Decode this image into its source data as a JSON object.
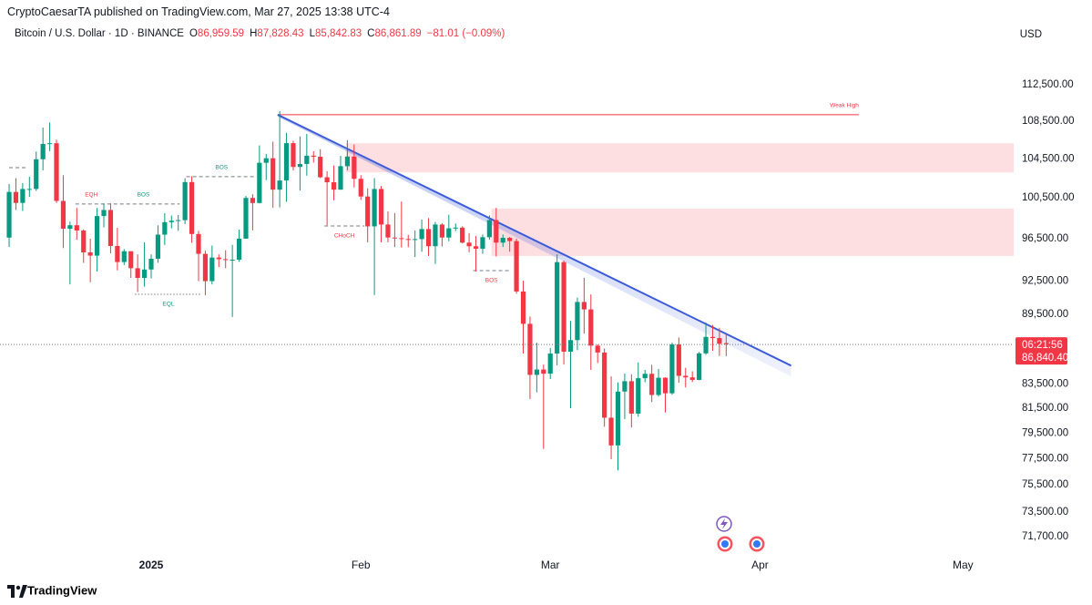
{
  "chart_data": {
    "type": "candlestick",
    "publisher": "CryptoCaesarTA published on TradingView.com, Mar 27, 2025 13:38 UTC-4",
    "title": "Bitcoin / U.S. Dollar · 1D · BINANCE",
    "header_values": [
      {
        "key": "O",
        "value": "86,959.59"
      },
      {
        "key": "H",
        "value": "87,828.43"
      },
      {
        "key": "L",
        "value": "85,842.83"
      },
      {
        "key": "C",
        "value": "86,861.89"
      }
    ],
    "change": "−81.01 (−0.09%)",
    "currency": "USD",
    "brand": "TradingView",
    "up_color": "#089981",
    "down_color": "#f23645",
    "log_scale": true,
    "grid": false,
    "ylim": [
      70670,
      116980
    ],
    "xlim": [
      -1.35,
      148.5
    ],
    "yticks": [
      {
        "value": 112500,
        "label": "112,500.00"
      },
      {
        "value": 108500,
        "label": "108,500.00"
      },
      {
        "value": 104500,
        "label": "104,500.00"
      },
      {
        "value": 100500,
        "label": "100,500.00"
      },
      {
        "value": 96500,
        "label": "96,500.00"
      },
      {
        "value": 92500,
        "label": "92,500.00"
      },
      {
        "value": 89500,
        "label": "89,500.00"
      },
      {
        "value": 83500,
        "label": "83,500.00"
      },
      {
        "value": 81500,
        "label": "81,500.00"
      },
      {
        "value": 79500,
        "label": "79,500.00"
      },
      {
        "value": 77500,
        "label": "77,500.00"
      },
      {
        "value": 75500,
        "label": "75,500.00"
      },
      {
        "value": 73500,
        "label": "73,500.00"
      },
      {
        "value": 71700,
        "label": "71,700.00"
      }
    ],
    "xticks": [
      {
        "value": 21,
        "label": "2025"
      },
      {
        "value": 52,
        "label": "Feb"
      },
      {
        "value": 80,
        "label": "Mar"
      },
      {
        "value": 111,
        "label": "Apr"
      },
      {
        "value": 141,
        "label": "May"
      }
    ],
    "last_price": {
      "value": 86840.4,
      "label": "86,840.40"
    },
    "countdown": "06:21:56",
    "ohlc": [
      [
        96600,
        101900,
        95700,
        101100
      ],
      [
        101100,
        102500,
        99300,
        100000
      ],
      [
        100000,
        102000,
        99200,
        101400
      ],
      [
        101400,
        102650,
        100600,
        101400
      ],
      [
        101400,
        105250,
        101200,
        104450
      ],
      [
        104450,
        107800,
        103300,
        106060
      ],
      [
        106060,
        108350,
        105300,
        106130
      ],
      [
        106130,
        106500,
        100000,
        100200
      ],
      [
        100200,
        102800,
        95600,
        97460
      ],
      [
        97460,
        98150,
        92200,
        97800
      ],
      [
        97800,
        99500,
        96400,
        97290
      ],
      [
        97290,
        97400,
        94200,
        95190
      ],
      [
        95190,
        96500,
        92400,
        94880
      ],
      [
        94880,
        99500,
        93400,
        98700
      ],
      [
        98700,
        99950,
        97600,
        99300
      ],
      [
        99300,
        99960,
        95100,
        95800
      ],
      [
        95800,
        97550,
        93500,
        94280
      ],
      [
        94280,
        95500,
        94000,
        95300
      ],
      [
        95300,
        95200,
        92800,
        93700
      ],
      [
        93700,
        95000,
        91500,
        92800
      ],
      [
        92800,
        96150,
        92000,
        93580
      ],
      [
        93580,
        95000,
        92750,
        94590
      ],
      [
        94590,
        97800,
        94200,
        96890
      ],
      [
        96890,
        98980,
        95900,
        98100
      ],
      [
        98100,
        98750,
        97500,
        98240
      ],
      [
        98240,
        98800,
        97250,
        98300
      ],
      [
        98300,
        102500,
        97900,
        102100
      ],
      [
        102100,
        102700,
        96100,
        96950
      ],
      [
        96950,
        97250,
        92500,
        95050
      ],
      [
        95050,
        95350,
        91200,
        92500
      ],
      [
        92500,
        95840,
        92200,
        94700
      ],
      [
        94700,
        95000,
        93800,
        94550
      ],
      [
        94550,
        95400,
        93700,
        94500
      ],
      [
        94500,
        95900,
        89260,
        94500
      ],
      [
        94500,
        97370,
        94300,
        96500
      ],
      [
        96500,
        100700,
        96500,
        100500
      ],
      [
        100500,
        100870,
        97300,
        99990
      ],
      [
        99990,
        105900,
        99950,
        104080
      ],
      [
        104080,
        104990,
        102300,
        104550
      ],
      [
        104550,
        106300,
        99500,
        101330
      ],
      [
        101330,
        109590,
        99550,
        102260
      ],
      [
        102260,
        107240,
        100100,
        106140
      ],
      [
        106140,
        106400,
        103300,
        103650
      ],
      [
        103650,
        106850,
        101250,
        103960
      ],
      [
        103960,
        107120,
        102750,
        104820
      ],
      [
        104820,
        105280,
        104100,
        104710
      ],
      [
        104710,
        105500,
        102500,
        102590
      ],
      [
        102590,
        103200,
        97800,
        102080
      ],
      [
        102080,
        103800,
        100270,
        101330
      ],
      [
        101330,
        104800,
        101330,
        103730
      ],
      [
        103730,
        106450,
        103300,
        104730
      ],
      [
        104730,
        106000,
        101550,
        102430
      ],
      [
        102430,
        102800,
        100300,
        100640
      ],
      [
        100640,
        101460,
        96150,
        97690
      ],
      [
        97690,
        102500,
        91230,
        101400
      ],
      [
        101400,
        101700,
        96150,
        97870
      ],
      [
        97870,
        99150,
        96150,
        96610
      ],
      [
        96610,
        99000,
        95700,
        96550
      ],
      [
        96550,
        100140,
        95650,
        96470
      ],
      [
        96470,
        96880,
        95680,
        96450
      ],
      [
        96450,
        97300,
        94750,
        96460
      ],
      [
        96460,
        98350,
        95250,
        97430
      ],
      [
        97430,
        98500,
        94850,
        95780
      ],
      [
        95780,
        98120,
        94100,
        97870
      ],
      [
        97870,
        98000,
        95750,
        96610
      ],
      [
        96610,
        98830,
        96250,
        97500
      ],
      [
        97500,
        97970,
        97230,
        97570
      ],
      [
        97570,
        97700,
        96050,
        96120
      ],
      [
        96120,
        97040,
        95200,
        95770
      ],
      [
        95770,
        96750,
        93400,
        95540
      ],
      [
        95540,
        96900,
        95050,
        96640
      ],
      [
        96640,
        98770,
        96400,
        98310
      ],
      [
        98310,
        99500,
        94800,
        96120
      ],
      [
        96120,
        96900,
        95700,
        96580
      ],
      [
        96580,
        96670,
        95250,
        96270
      ],
      [
        96270,
        96500,
        91350,
        91550
      ],
      [
        91550,
        92540,
        86050,
        88650
      ],
      [
        88650,
        89300,
        82250,
        84250
      ],
      [
        84250,
        87000,
        82800,
        84700
      ],
      [
        84700,
        85120,
        78260,
        84350
      ],
      [
        84350,
        86550,
        83900,
        86060
      ],
      [
        86060,
        95000,
        85050,
        94270
      ],
      [
        94270,
        94420,
        85120,
        86220
      ],
      [
        86220,
        88900,
        81500,
        87220
      ],
      [
        87220,
        91000,
        86350,
        90600
      ],
      [
        90600,
        92800,
        87800,
        89930
      ],
      [
        89930,
        91280,
        84670,
        86740
      ],
      [
        86740,
        86850,
        85250,
        86150
      ],
      [
        86150,
        86500,
        80000,
        80730
      ],
      [
        80730,
        84120,
        77460,
        78530
      ],
      [
        78530,
        83620,
        76600,
        82860
      ],
      [
        82860,
        84360,
        80620,
        83720
      ],
      [
        83720,
        84300,
        79950,
        81060
      ],
      [
        81060,
        85300,
        80800,
        83970
      ],
      [
        83970,
        84670,
        83630,
        84340
      ],
      [
        84340,
        85100,
        82000,
        82580
      ],
      [
        82580,
        84750,
        82450,
        84010
      ],
      [
        84010,
        84050,
        81150,
        82720
      ],
      [
        82720,
        87000,
        82600,
        86850
      ],
      [
        86850,
        87450,
        83600,
        84170
      ],
      [
        84170,
        84850,
        83200,
        84040
      ],
      [
        84040,
        84550,
        83650,
        83830
      ],
      [
        83830,
        86200,
        83800,
        86080
      ],
      [
        86080,
        88770,
        85950,
        87500
      ],
      [
        87500,
        88550,
        86300,
        87400
      ],
      [
        87400,
        88300,
        85850,
        86900
      ],
      [
        86959.59,
        87828.43,
        85842.83,
        86861.89
      ]
    ],
    "zones": [
      {
        "x": [
          49.8,
          148.5
        ],
        "y": [
          103090,
          106130
        ],
        "color": "#f23645"
      },
      {
        "x": [
          71.3,
          148.5
        ],
        "y": [
          94850,
          99440
        ],
        "color": "#f23645"
      }
    ],
    "trendline": {
      "points": [
        [
          39.7,
          109190
        ],
        [
          115.6,
          85030
        ]
      ],
      "color": "#3b5bdb"
    },
    "annotations": [
      {
        "x": [
          0,
          2.7
        ],
        "y": 103580,
        "color": "#787b86",
        "style": "dashed"
      },
      {
        "label": "EQH",
        "x": [
          9.8,
          14.5
        ],
        "y": 99890,
        "color": "#f23645",
        "style": "dashed",
        "label_side": "above"
      },
      {
        "label": "BOS",
        "x": [
          14.5,
          25.2
        ],
        "y": 99890,
        "color": "#089981",
        "style": "dashed",
        "label_side": "above"
      },
      {
        "label": "BOS",
        "x": [
          26.2,
          36.6
        ],
        "y": 102650,
        "color": "#089981",
        "style": "dashed",
        "label_side": "above"
      },
      {
        "label": "EQL",
        "x": [
          18.6,
          28.5
        ],
        "y": 91300,
        "color": "#089981",
        "style": "dotted",
        "label_side": "below"
      },
      {
        "label": "CHoCH",
        "x": [
          46.6,
          52.5
        ],
        "y": 97730,
        "color": "#f23645",
        "style": "dashed",
        "label_side": "below"
      },
      {
        "label": "BOS",
        "x": [
          68.6,
          74
        ],
        "y": 93480,
        "color": "#f23645",
        "style": "dashed",
        "label_side": "below"
      },
      {
        "label": "Weak High",
        "x": [
          39.7,
          125.6
        ],
        "y": 109190,
        "color": "#f23645",
        "style": "solid",
        "label_side": "above-end"
      }
    ]
  }
}
